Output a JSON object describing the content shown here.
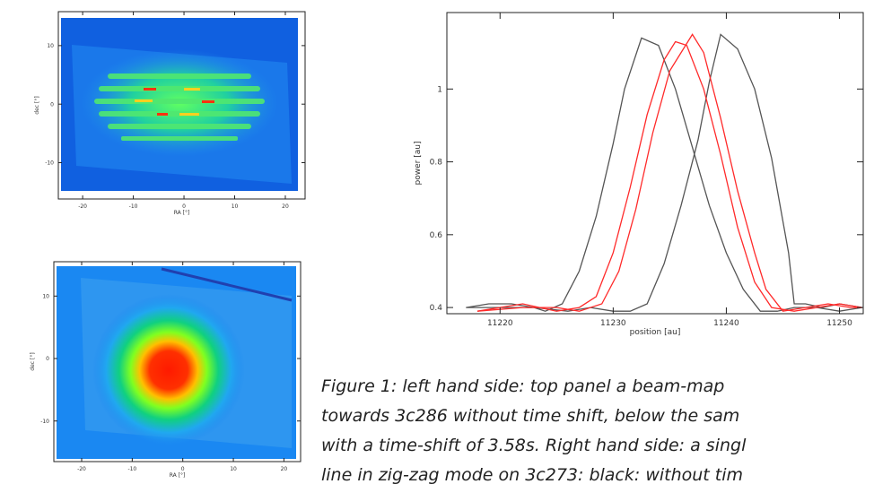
{
  "chart_data": [
    {
      "type": "image",
      "xlabel": "RA [°]",
      "ylabel": "dec [°]",
      "xlim": [
        -24.8,
        23.9
      ],
      "xticks": [
        -20,
        -10,
        0,
        10,
        20
      ],
      "ylim": [
        -16.2,
        15.8
      ],
      "yticks": [
        -10,
        0,
        10
      ]
    },
    {
      "type": "image",
      "xlabel": "RA [°]",
      "ylabel": "dec [°]",
      "xlim": [
        -25.5,
        23.3
      ],
      "xticks": [
        -20,
        -10,
        0,
        10,
        20
      ],
      "ylim": [
        -16.5,
        15.5
      ],
      "yticks": [
        -10,
        0,
        10
      ]
    },
    {
      "type": "line",
      "xlabel": "position [au]",
      "ylabel": "power [au]",
      "xlim": [
        11215.3,
        11252.1
      ],
      "xticks": [
        11220,
        11230,
        11240,
        11250
      ],
      "ylim": [
        0.383,
        1.21
      ],
      "yticks": [
        0.4,
        0.6,
        0.8,
        1
      ],
      "series": [
        {
          "color": "#555555",
          "x": [
            11217,
            11219,
            11221,
            11223,
            11224,
            11225.5,
            11227,
            11228.5,
            11230,
            11231,
            11232.5,
            11234,
            11235.5,
            11237,
            11238.5,
            11240,
            11241.5,
            11243,
            11244.5,
            11246,
            11248,
            11250,
            11252
          ],
          "values": [
            0.4,
            0.41,
            0.41,
            0.4,
            0.39,
            0.41,
            0.5,
            0.65,
            0.85,
            1.0,
            1.14,
            1.12,
            1.0,
            0.84,
            0.68,
            0.55,
            0.45,
            0.39,
            0.39,
            0.4,
            0.4,
            0.39,
            0.4
          ]
        },
        {
          "color": "#555555",
          "x": [
            11217,
            11220,
            11223,
            11226,
            11228,
            11230,
            11231.5,
            11233,
            11234.5,
            11236,
            11237.5,
            11238.5,
            11239.5,
            11241,
            11242.5,
            11244,
            11245.5,
            11246,
            11247,
            11248.5,
            11250,
            11252
          ],
          "values": [
            0.4,
            0.4,
            0.4,
            0.39,
            0.4,
            0.39,
            0.39,
            0.41,
            0.52,
            0.68,
            0.86,
            1.02,
            1.15,
            1.11,
            1.0,
            0.81,
            0.55,
            0.41,
            0.41,
            0.4,
            0.41,
            0.4
          ]
        },
        {
          "color": "#ff2a2a",
          "x": [
            11218,
            11222,
            11225,
            11227,
            11228.5,
            11230,
            11231.5,
            11233,
            11234.5,
            11235.5,
            11236.5,
            11238,
            11239.5,
            11241,
            11242.5,
            11244,
            11246,
            11248,
            11250,
            11252
          ],
          "values": [
            0.39,
            0.41,
            0.39,
            0.4,
            0.43,
            0.55,
            0.73,
            0.93,
            1.08,
            1.13,
            1.12,
            1.0,
            0.82,
            0.62,
            0.47,
            0.4,
            0.39,
            0.4,
            0.41,
            0.4
          ]
        },
        {
          "color": "#ff2a2a",
          "x": [
            11218,
            11222,
            11225,
            11227,
            11229,
            11230.5,
            11232,
            11233.5,
            11235,
            11237,
            11238,
            11239.5,
            11241,
            11242.5,
            11243.5,
            11245,
            11247,
            11249,
            11251,
            11252
          ],
          "values": [
            0.39,
            0.4,
            0.4,
            0.39,
            0.41,
            0.5,
            0.67,
            0.88,
            1.05,
            1.15,
            1.1,
            0.92,
            0.72,
            0.55,
            0.45,
            0.39,
            0.4,
            0.41,
            0.4,
            0.4
          ]
        }
      ]
    }
  ],
  "caption": {
    "lines": [
      "Figure 1: left hand side: top panel a beam-map",
      "towards 3c286 without time shift, below the sam",
      "with a time-shift of 3.58s. Right hand side: a singl",
      "line in zig-zag mode on 3c273: black: without tim"
    ]
  }
}
